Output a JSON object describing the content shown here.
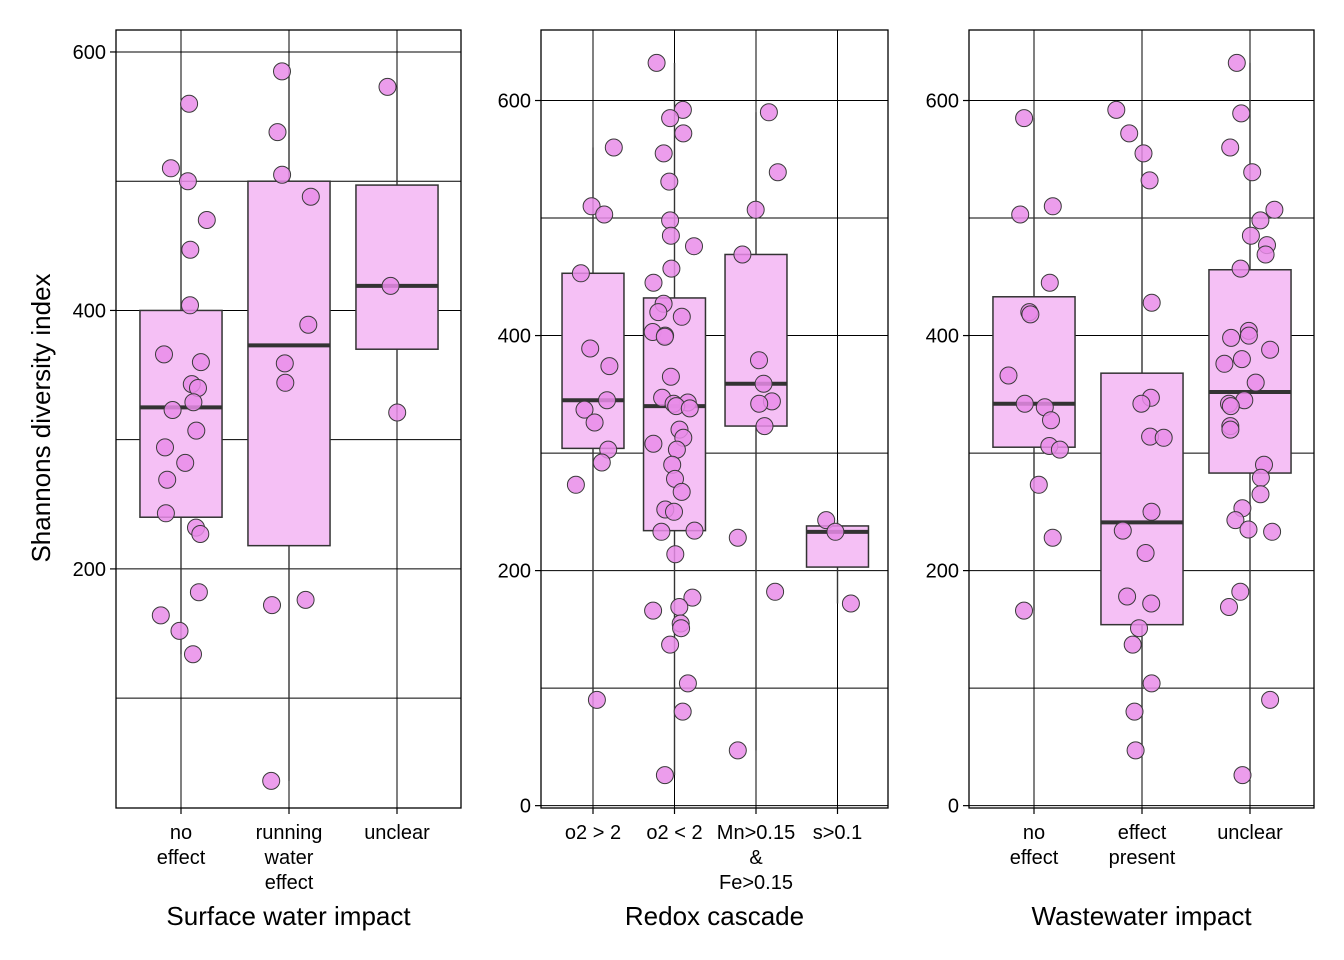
{
  "ylabel": "Shannons diversity index",
  "colors": {
    "box_fill": "#f5c0f5",
    "point_fill": "#e98ce9",
    "outline": "#333333",
    "median": "#333333",
    "grid": "#000000"
  },
  "chart_data": [
    {
      "type": "box",
      "title": "",
      "xlabel": "Surface water impact",
      "ylabel": "Shannons diversity index",
      "ylim": [
        15,
        617
      ],
      "yticks": [
        200,
        400,
        600
      ],
      "grid": true,
      "categories": [
        {
          "label": [
            "no",
            "effect"
          ],
          "q1": 240,
          "median": 325,
          "q3": 400,
          "whisker_low": 134,
          "whisker_high": 560,
          "points": [
            560,
            510,
            500,
            470,
            447,
            404,
            366,
            360,
            343,
            340,
            329,
            323,
            307,
            294,
            282,
            269,
            243,
            232,
            227,
            182,
            164,
            152,
            134
          ]
        },
        {
          "label": [
            "running",
            "water",
            "effect"
          ],
          "q1": 218,
          "median": 373,
          "q3": 500,
          "whisker_low": 36,
          "whisker_high": 585,
          "points": [
            585,
            538,
            505,
            488,
            389,
            359,
            344,
            176,
            172,
            36
          ]
        },
        {
          "label": [
            "unclear"
          ],
          "q1": 370,
          "median": 419,
          "q3": 497,
          "whisker_low": 321,
          "whisker_high": 573,
          "points": [
            573,
            419,
            321
          ]
        }
      ]
    },
    {
      "type": "box",
      "title": "",
      "xlabel": "Redox cascade",
      "ylabel": "",
      "ylim": [
        -2,
        660
      ],
      "yticks": [
        0,
        200,
        400,
        600
      ],
      "grid": true,
      "categories": [
        {
          "label": [
            "o2 > 2"
          ],
          "q1": 304,
          "median": 345,
          "q3": 453,
          "whisker_low": 90,
          "whisker_high": 560,
          "points": [
            560,
            510,
            503,
            453,
            389,
            374,
            345,
            337,
            326,
            303,
            292,
            273,
            90
          ]
        },
        {
          "label": [
            "o2 < 2"
          ],
          "q1": 234,
          "median": 340,
          "q3": 432,
          "whisker_low": 26,
          "whisker_high": 632,
          "points": [
            632,
            592,
            585,
            572,
            555,
            531,
            498,
            485,
            476,
            457,
            445,
            427,
            420,
            416,
            403,
            400,
            399,
            365,
            347,
            343,
            342,
            340,
            338,
            320,
            313,
            308,
            303,
            290,
            278,
            267,
            252,
            250,
            234,
            233,
            214,
            177,
            169,
            166,
            155,
            151,
            137,
            104,
            80,
            26
          ]
        },
        {
          "label": [
            "Mn>0.15",
            "&",
            "Fe>0.15"
          ],
          "q1": 323,
          "median": 359,
          "q3": 469,
          "whisker_low": 47,
          "whisker_high": 590,
          "points": [
            590,
            539,
            507,
            469,
            379,
            359,
            344,
            342,
            323,
            228,
            182,
            47
          ]
        },
        {
          "label": [
            "s>0.1"
          ],
          "q1": 203,
          "median": 233,
          "q3": 238,
          "whisker_low": 172,
          "whisker_high": 243,
          "points": [
            243,
            233,
            172
          ]
        }
      ]
    },
    {
      "type": "box",
      "title": "",
      "xlabel": "Wastewater impact",
      "ylabel": "",
      "ylim": [
        -2,
        660
      ],
      "yticks": [
        0,
        200,
        400,
        600
      ],
      "grid": true,
      "categories": [
        {
          "label": [
            "no",
            "effect"
          ],
          "q1": 305,
          "median": 342,
          "q3": 433,
          "whisker_low": 166,
          "whisker_high": 585,
          "points": [
            585,
            510,
            503,
            445,
            420,
            418,
            366,
            342,
            339,
            328,
            306,
            303,
            273,
            228,
            166
          ]
        },
        {
          "label": [
            "effect",
            "present"
          ],
          "q1": 154,
          "median": 241,
          "q3": 368,
          "whisker_low": 47,
          "whisker_high": 592,
          "points": [
            592,
            572,
            555,
            532,
            428,
            347,
            342,
            314,
            313,
            250,
            234,
            215,
            178,
            172,
            151,
            137,
            104,
            80,
            47
          ]
        },
        {
          "label": [
            "unclear"
          ],
          "q1": 283,
          "median": 352,
          "q3": 456,
          "whisker_low": 26,
          "whisker_high": 632,
          "points": [
            632,
            589,
            560,
            539,
            507,
            498,
            485,
            477,
            469,
            457,
            404,
            400,
            398,
            388,
            380,
            376,
            360,
            345,
            342,
            340,
            323,
            320,
            290,
            279,
            265,
            253,
            243,
            235,
            233,
            182,
            169,
            90,
            26
          ]
        }
      ]
    }
  ]
}
